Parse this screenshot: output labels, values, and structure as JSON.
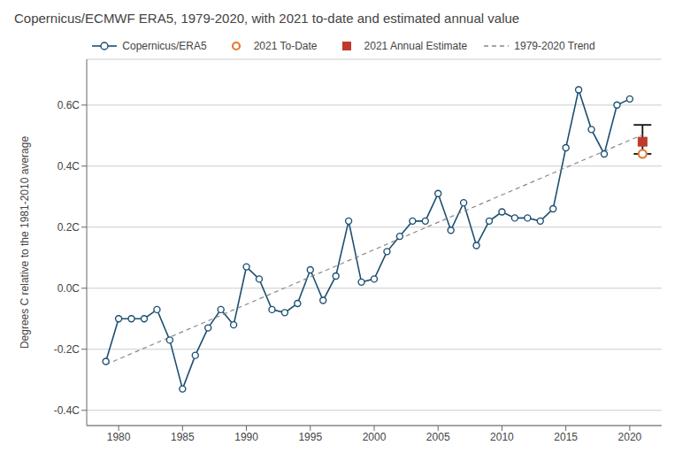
{
  "chart_data": {
    "type": "line",
    "title": "Copernicus/ECMWF ERA5, 1979-2020, with 2021 to-date and estimated annual value",
    "y_label": "Degrees C relative to the 1981-2010 average",
    "series": [
      {
        "name": "Copernicus/ERA5",
        "type": "line",
        "color": "#1b4f72",
        "marker": "circle",
        "x": [
          1979,
          1980,
          1981,
          1982,
          1983,
          1984,
          1985,
          1986,
          1987,
          1988,
          1989,
          1990,
          1991,
          1992,
          1993,
          1994,
          1995,
          1996,
          1997,
          1998,
          1999,
          2000,
          2001,
          2002,
          2003,
          2004,
          2005,
          2006,
          2007,
          2008,
          2009,
          2010,
          2011,
          2012,
          2013,
          2014,
          2015,
          2016,
          2017,
          2018,
          2019,
          2020
        ],
        "values": [
          -0.24,
          -0.1,
          -0.1,
          -0.1,
          -0.07,
          -0.17,
          -0.33,
          -0.22,
          -0.13,
          -0.07,
          -0.12,
          0.07,
          0.03,
          -0.07,
          -0.08,
          -0.05,
          0.06,
          -0.04,
          0.04,
          0.22,
          0.02,
          0.03,
          0.12,
          0.17,
          0.22,
          0.22,
          0.31,
          0.19,
          0.28,
          0.14,
          0.22,
          0.25,
          0.23,
          0.23,
          0.22,
          0.26,
          0.46,
          0.65,
          0.52,
          0.44,
          0.6,
          0.62
        ]
      },
      {
        "name": "2021 To-Date",
        "type": "scatter",
        "color": "#e07b39",
        "marker": "circle",
        "x": [
          2021
        ],
        "values": [
          0.44
        ]
      },
      {
        "name": "2021 Annual Estimate",
        "type": "scatter",
        "color": "#bf3a2b",
        "marker": "square",
        "x": [
          2021
        ],
        "values": [
          0.48
        ],
        "error_lower": [
          0.04
        ],
        "error_upper": [
          0.055
        ]
      },
      {
        "name": "1979-2020 Trend",
        "type": "line",
        "color": "#888888",
        "line_style": "dashed",
        "x": [
          1979,
          2021
        ],
        "values": [
          -0.2501,
          0.5028
        ]
      }
    ],
    "xlim": [
      1977.5,
      2022.5
    ],
    "xticks": [
      1980,
      1985,
      1990,
      1995,
      2000,
      2005,
      2010,
      2015,
      2020
    ],
    "ylim": [
      -0.45,
      0.75
    ],
    "yticks": [
      {
        "value": -0.4,
        "label": "-0.4C"
      },
      {
        "value": -0.2,
        "label": "-0.2C"
      },
      {
        "value": 0.0,
        "label": "0.0C"
      },
      {
        "value": 0.2,
        "label": "0.2C"
      },
      {
        "value": 0.4,
        "label": "0.4C"
      },
      {
        "value": 0.6,
        "label": "0.6C"
      }
    ],
    "grid": "y",
    "legend": "top"
  }
}
